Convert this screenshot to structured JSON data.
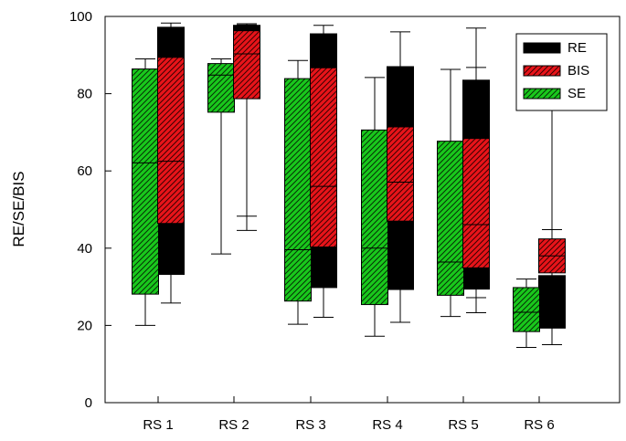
{
  "chart_data": {
    "type": "box",
    "ylabel": "RE/SE/BIS",
    "ylim": [
      0,
      100
    ],
    "yticks": [
      0,
      20,
      40,
      60,
      80,
      100
    ],
    "categories": [
      "RS 1",
      "RS 2",
      "RS 3",
      "RS 4",
      "RS 5",
      "RS 6"
    ],
    "legend_position": "top-right",
    "series": [
      {
        "name": "RE",
        "color": "#000000",
        "pattern": "solid",
        "boxes": [
          {
            "min": 25.8,
            "q1": 33.2,
            "median": null,
            "q3": 97.2,
            "max": 98.3
          },
          {
            "min": 44.6,
            "q1": 89.0,
            "median": null,
            "q3": 97.7,
            "max": 98.1
          },
          {
            "min": 22.1,
            "q1": 29.8,
            "median": null,
            "q3": 95.5,
            "max": 97.7
          },
          {
            "min": 20.8,
            "q1": 29.3,
            "median": null,
            "q3": 87.0,
            "max": 96.0
          },
          {
            "min": 23.3,
            "q1": 29.4,
            "median": null,
            "q3": 83.5,
            "max": 97.0
          },
          {
            "min": 15.0,
            "q1": 19.3,
            "median": null,
            "q3": 32.9,
            "max": 78.0
          }
        ]
      },
      {
        "name": "BIS",
        "color": "#e8141a",
        "pattern": "hatch",
        "boxes": [
          {
            "min": 36.0,
            "q1": 46.4,
            "median": 62.5,
            "q3": 89.4,
            "max": 95.8
          },
          {
            "min": 48.3,
            "q1": 78.7,
            "median": 90.3,
            "q3": 96.3,
            "max": 97.8
          },
          {
            "min": 33.0,
            "q1": 40.3,
            "median": 56.0,
            "q3": 86.7,
            "max": 94.2
          },
          {
            "min": 40.6,
            "q1": 47.0,
            "median": 57.1,
            "q3": 71.4,
            "max": 84.8
          },
          {
            "min": 27.2,
            "q1": 34.9,
            "median": 46.1,
            "q3": 68.4,
            "max": 86.8
          },
          {
            "min": 29.1,
            "q1": 33.6,
            "median": 38.0,
            "q3": 42.4,
            "max": 44.8
          }
        ]
      },
      {
        "name": "SE",
        "color": "#19c81c",
        "pattern": "hatch",
        "boxes": [
          {
            "min": 20.0,
            "q1": 28.1,
            "median": 62.1,
            "q3": 86.4,
            "max": 89.0
          },
          {
            "min": 38.5,
            "q1": 75.2,
            "median": 84.8,
            "q3": 87.8,
            "max": 89.0
          },
          {
            "min": 20.3,
            "q1": 26.3,
            "median": 39.6,
            "q3": 83.9,
            "max": 88.6
          },
          {
            "min": 17.2,
            "q1": 25.4,
            "median": 40.0,
            "q3": 70.6,
            "max": 84.2
          },
          {
            "min": 22.3,
            "q1": 27.8,
            "median": 36.4,
            "q3": 67.7,
            "max": 86.3
          },
          {
            "min": 14.3,
            "q1": 18.4,
            "median": 23.4,
            "q3": 29.8,
            "max": 32.0
          }
        ]
      }
    ]
  }
}
